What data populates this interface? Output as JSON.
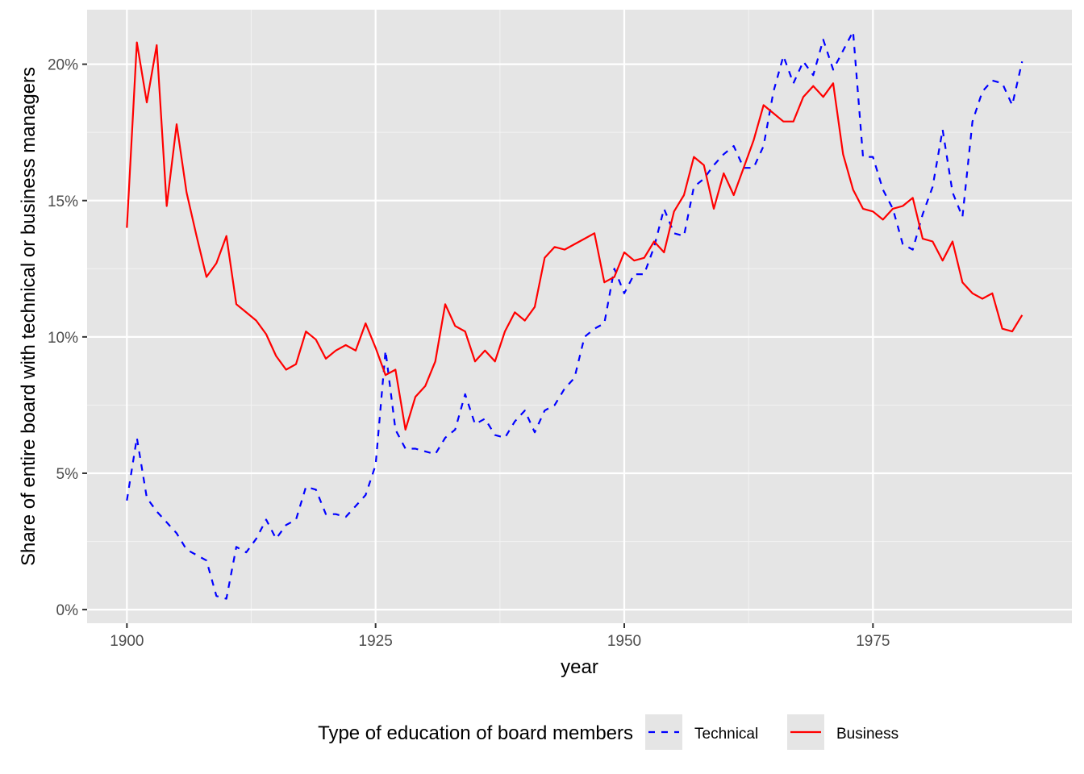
{
  "chart_data": {
    "type": "line",
    "xlabel": "year",
    "ylabel": "Share of entire board with technical or business managers",
    "xlim": [
      1896,
      1995
    ],
    "ylim": [
      -0.005,
      0.22
    ],
    "x_ticks": [
      1900,
      1925,
      1950,
      1975
    ],
    "y_ticks": [
      0,
      0.05,
      0.1,
      0.15,
      0.2
    ],
    "x_tick_labels": [
      "1900",
      "1925",
      "1950",
      "1975"
    ],
    "y_tick_labels": [
      "0%",
      "5%",
      "10%",
      "15%",
      "20%"
    ],
    "grid": true,
    "legend": {
      "title": "Type of education of board members",
      "position": "bottom",
      "entries": [
        {
          "label": "Technical",
          "color": "#0000ff",
          "linetype": "dashed"
        },
        {
          "label": "Business",
          "color": "#ff0000",
          "linetype": "solid"
        }
      ]
    },
    "series": [
      {
        "name": "Technical",
        "color": "#0000ff",
        "linetype": "dashed",
        "x": [
          1900,
          1901,
          1902,
          1903,
          1904,
          1905,
          1906,
          1907,
          1908,
          1909,
          1910,
          1911,
          1912,
          1913,
          1914,
          1915,
          1916,
          1917,
          1918,
          1919,
          1920,
          1921,
          1922,
          1923,
          1924,
          1925,
          1926,
          1927,
          1928,
          1929,
          1930,
          1931,
          1932,
          1933,
          1934,
          1935,
          1936,
          1937,
          1938,
          1939,
          1940,
          1941,
          1942,
          1943,
          1944,
          1945,
          1946,
          1947,
          1948,
          1949,
          1950,
          1951,
          1952,
          1953,
          1954,
          1955,
          1956,
          1957,
          1958,
          1959,
          1960,
          1961,
          1962,
          1963,
          1964,
          1965,
          1966,
          1967,
          1968,
          1969,
          1970,
          1971,
          1972,
          1973,
          1974,
          1975,
          1976,
          1977,
          1978,
          1979,
          1980,
          1981,
          1982,
          1983,
          1984,
          1985,
          1986,
          1987,
          1988,
          1989,
          1990
        ],
        "y": [
          0.04,
          0.063,
          0.041,
          0.036,
          0.032,
          0.028,
          0.022,
          0.02,
          0.018,
          0.005,
          0.004,
          0.023,
          0.021,
          0.026,
          0.033,
          0.026,
          0.031,
          0.033,
          0.045,
          0.044,
          0.035,
          0.035,
          0.034,
          0.038,
          0.042,
          0.053,
          0.095,
          0.066,
          0.059,
          0.059,
          0.058,
          0.057,
          0.063,
          0.066,
          0.079,
          0.068,
          0.07,
          0.064,
          0.063,
          0.069,
          0.073,
          0.065,
          0.073,
          0.075,
          0.081,
          0.085,
          0.1,
          0.103,
          0.105,
          0.125,
          0.116,
          0.123,
          0.123,
          0.133,
          0.147,
          0.138,
          0.137,
          0.155,
          0.158,
          0.163,
          0.167,
          0.17,
          0.162,
          0.162,
          0.17,
          0.19,
          0.203,
          0.193,
          0.201,
          0.196,
          0.209,
          0.198,
          0.205,
          0.212,
          0.166,
          0.166,
          0.154,
          0.147,
          0.134,
          0.132,
          0.145,
          0.155,
          0.176,
          0.153,
          0.144,
          0.179,
          0.19,
          0.194,
          0.193,
          0.185,
          0.201
        ]
      },
      {
        "name": "Business",
        "color": "#ff0000",
        "linetype": "solid",
        "x": [
          1900,
          1901,
          1902,
          1903,
          1904,
          1905,
          1906,
          1907,
          1908,
          1909,
          1910,
          1911,
          1912,
          1913,
          1914,
          1915,
          1916,
          1917,
          1918,
          1919,
          1920,
          1921,
          1922,
          1923,
          1924,
          1925,
          1926,
          1927,
          1928,
          1929,
          1930,
          1931,
          1932,
          1933,
          1934,
          1935,
          1936,
          1937,
          1938,
          1939,
          1940,
          1941,
          1942,
          1943,
          1944,
          1945,
          1946,
          1947,
          1948,
          1949,
          1950,
          1951,
          1952,
          1953,
          1954,
          1955,
          1956,
          1957,
          1958,
          1959,
          1960,
          1961,
          1962,
          1963,
          1964,
          1965,
          1966,
          1967,
          1968,
          1969,
          1970,
          1971,
          1972,
          1973,
          1974,
          1975,
          1976,
          1977,
          1978,
          1979,
          1980,
          1981,
          1982,
          1983,
          1984,
          1985,
          1986,
          1987,
          1988,
          1989,
          1990
        ],
        "y": [
          0.14,
          0.208,
          0.186,
          0.207,
          0.148,
          0.178,
          0.153,
          0.137,
          0.122,
          0.127,
          0.137,
          0.112,
          0.109,
          0.106,
          0.101,
          0.093,
          0.088,
          0.09,
          0.102,
          0.099,
          0.092,
          0.095,
          0.097,
          0.095,
          0.105,
          0.096,
          0.086,
          0.088,
          0.066,
          0.078,
          0.082,
          0.091,
          0.112,
          0.104,
          0.102,
          0.091,
          0.095,
          0.091,
          0.102,
          0.109,
          0.106,
          0.111,
          0.129,
          0.133,
          0.132,
          0.134,
          0.136,
          0.138,
          0.12,
          0.122,
          0.131,
          0.128,
          0.129,
          0.135,
          0.131,
          0.146,
          0.152,
          0.166,
          0.163,
          0.147,
          0.16,
          0.152,
          0.162,
          0.172,
          0.185,
          0.182,
          0.179,
          0.179,
          0.188,
          0.192,
          0.188,
          0.193,
          0.167,
          0.154,
          0.147,
          0.146,
          0.143,
          0.147,
          0.148,
          0.151,
          0.136,
          0.135,
          0.128,
          0.135,
          0.12,
          0.116,
          0.114,
          0.116,
          0.103,
          0.102,
          0.108
        ]
      }
    ]
  }
}
